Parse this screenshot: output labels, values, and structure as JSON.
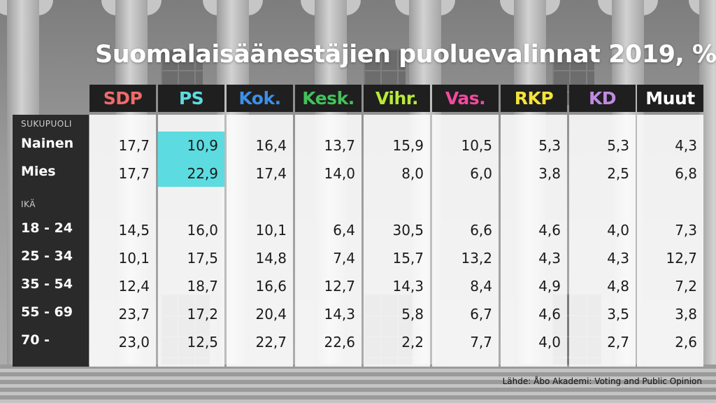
{
  "title": "Suomalaisäänestäjien puoluevalinnat 2019, %",
  "source": "Lähde: Åbo Akademi: Voting and Public Opinion",
  "colors": {
    "SDP": "#f06a6a",
    "PS": "#5cdce0",
    "Kok.": "#3d8fe6",
    "Kesk.": "#43c25a",
    "Vihr.": "#b7ea3a",
    "Vas.": "#f04aa0",
    "RKP": "#f5e43a",
    "KD": "#c08be0",
    "Muut": "#ffffff",
    "highlight": "#5cdce0"
  },
  "chart_data": {
    "type": "table",
    "title": "Suomalaisäänestäjien puoluevalinnat 2019, %",
    "columns": [
      "SDP",
      "PS",
      "Kok.",
      "Kesk.",
      "Vihr.",
      "Vas.",
      "RKP",
      "KD",
      "Muut"
    ],
    "groups": [
      {
        "name": "SUKUPUOLI",
        "rows": [
          {
            "label": "Nainen",
            "values": [
              "17,7",
              "10,9",
              "16,4",
              "13,7",
              "15,9",
              "10,5",
              "5,3",
              "5,3",
              "4,3"
            ]
          },
          {
            "label": "Mies",
            "values": [
              "17,7",
              "22,9",
              "17,4",
              "14,0",
              "8,0",
              "6,0",
              "3,8",
              "2,5",
              "6,8"
            ]
          }
        ]
      },
      {
        "name": "IKÄ",
        "rows": [
          {
            "label": "18 - 24",
            "values": [
              "14,5",
              "16,0",
              "10,1",
              "6,4",
              "30,5",
              "6,6",
              "4,6",
              "4,0",
              "7,3"
            ]
          },
          {
            "label": "25 - 34",
            "values": [
              "10,1",
              "17,5",
              "14,8",
              "7,4",
              "15,7",
              "13,2",
              "4,3",
              "4,3",
              "12,7"
            ]
          },
          {
            "label": "35 - 54",
            "values": [
              "12,4",
              "18,7",
              "16,6",
              "12,7",
              "14,3",
              "8,4",
              "4,9",
              "4,8",
              "7,2"
            ]
          },
          {
            "label": "55 - 69",
            "values": [
              "23,7",
              "17,2",
              "20,4",
              "14,3",
              "5,8",
              "6,7",
              "4,6",
              "3,5",
              "3,8"
            ]
          },
          {
            "label": "70 -",
            "values": [
              "23,0",
              "12,5",
              "22,7",
              "22,6",
              "2,2",
              "7,7",
              "4,0",
              "2,7",
              "2,6"
            ]
          }
        ]
      }
    ],
    "highlighted_cells": [
      {
        "row": "Nainen",
        "column": "PS"
      },
      {
        "row": "Mies",
        "column": "PS"
      }
    ]
  }
}
